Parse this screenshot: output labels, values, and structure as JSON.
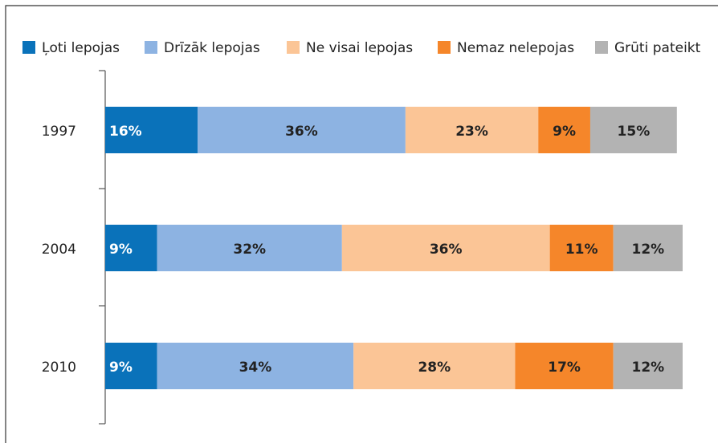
{
  "chart_data": {
    "type": "stacked-barh",
    "categories": [
      "1997",
      "2004",
      "2010"
    ],
    "series": [
      {
        "name": "Ļoti lepojas",
        "color": "#0a72ba",
        "values": [
          16,
          9,
          9
        ],
        "value_labels": [
          "16%",
          "9%",
          "9%"
        ]
      },
      {
        "name": "Drīzāk lepojas",
        "color": "#8db3e2",
        "values": [
          36,
          32,
          34
        ],
        "value_labels": [
          "36%",
          "32%",
          "34%"
        ]
      },
      {
        "name": "Ne visai lepojas",
        "color": "#fbc596",
        "values": [
          23,
          36,
          28
        ],
        "value_labels": [
          "23%",
          "36%",
          "28%"
        ]
      },
      {
        "name": "Nemaz nelepojas",
        "color": "#f5862a",
        "values": [
          9,
          11,
          17
        ],
        "value_labels": [
          "9%",
          "11%",
          "17%"
        ]
      },
      {
        "name": "Grūti pateikt",
        "color": "#b3b3b3",
        "values": [
          15,
          12,
          12
        ],
        "value_labels": [
          "15%",
          "12%",
          "12%"
        ]
      }
    ],
    "xlim": [
      0,
      100
    ]
  }
}
